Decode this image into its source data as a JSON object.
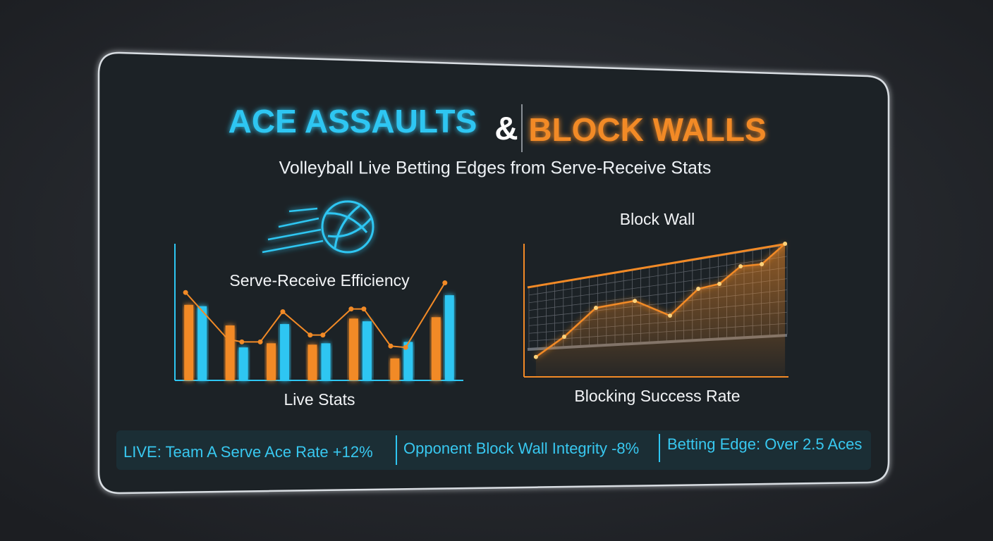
{
  "header": {
    "title_left": "ACE ASSAULTS",
    "title_amp": "&",
    "title_right": "BLOCK WALLS",
    "subtitle": "Volleyball Live Betting Edges from Serve-Receive Stats"
  },
  "chart_data": [
    {
      "type": "bar",
      "title": "Serve-Receive Efficiency",
      "x_label": "Live Stats",
      "categories": [
        null,
        null,
        null,
        null,
        null,
        null,
        null
      ],
      "series": [
        {
          "color": "#f28a26",
          "values": [
            55,
            40,
            27,
            26,
            45,
            16,
            46
          ]
        },
        {
          "color": "#2ec6f2",
          "values": [
            54,
            24,
            41,
            27,
            43,
            28,
            62
          ]
        }
      ],
      "trend": {
        "color": "#f28a26",
        "x": [
          3.7,
          18.3,
          23.2,
          29.6,
          37.4,
          46.9,
          51.3,
          61.1,
          65.5,
          74.8,
          80,
          93.6
        ],
        "values": [
          64,
          30,
          28,
          28,
          50,
          33,
          33,
          52,
          52,
          25,
          24,
          71
        ]
      },
      "xlim": [
        0,
        100
      ],
      "ylim": [
        0,
        100
      ]
    },
    {
      "type": "line",
      "title": "Block Wall",
      "x_label": "Blocking Success Rate",
      "color": "#f28a26",
      "x": [
        4.5,
        15.2,
        27.2,
        41.9,
        55.2,
        65.9,
        73.9,
        81.9,
        89.9,
        98.7
      ],
      "values": [
        14.9,
        30,
        51.6,
        56.8,
        45.8,
        65.8,
        69.5,
        82.6,
        84.2,
        99.5
      ],
      "xlim": [
        0,
        100
      ],
      "ylim": [
        0,
        100
      ]
    }
  ],
  "ticker": [
    "LIVE: Team A Serve Ace Rate +12%",
    "Opponent Block Wall Integrity -8%",
    "Betting Edge: Over 2.5 Aces"
  ]
}
